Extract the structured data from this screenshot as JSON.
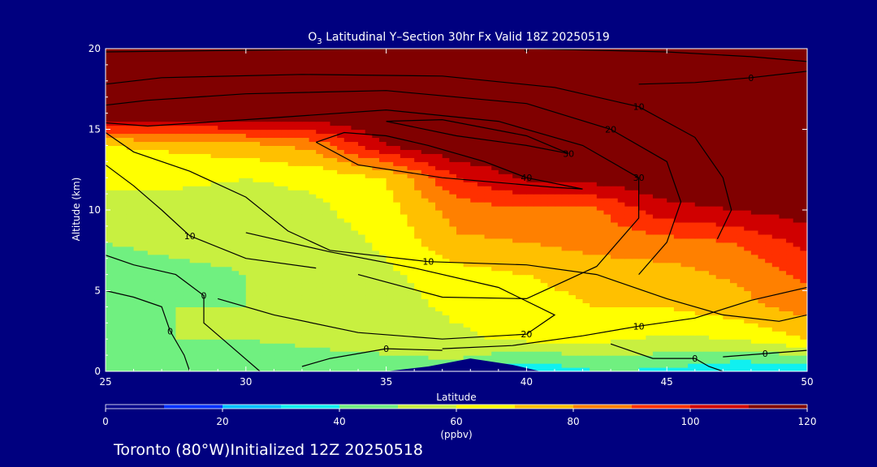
{
  "chart_data": {
    "type": "heatmap",
    "title_parts": {
      "species": "O",
      "subscript": "3",
      "rest": " Latitudinal Y–Section 30hr  Fx Valid 18Z 20250519"
    },
    "xlabel": "Latitude",
    "ylabel": "Altitude (km)",
    "xlim": [
      25,
      50
    ],
    "ylim": [
      0,
      20
    ],
    "x_ticks": [
      25,
      30,
      35,
      40,
      45,
      50
    ],
    "y_ticks": [
      0,
      5,
      10,
      15,
      20
    ],
    "x_tick_labels": [
      "25",
      "30",
      "35",
      "40",
      "45",
      "50"
    ],
    "y_tick_labels": [
      "0",
      "5",
      "10",
      "15",
      "20"
    ],
    "colorbar": {
      "range": [
        0,
        120
      ],
      "ticks": [
        0,
        20,
        40,
        60,
        80,
        100,
        120
      ],
      "tick_labels": [
        "0",
        "20",
        "40",
        "60",
        "80",
        "100",
        "120"
      ],
      "units": "(ppbv)",
      "colors": [
        "#00008b",
        "#0030ff",
        "#00c0ff",
        "#10f0f0",
        "#70f080",
        "#c8f040",
        "#ffff00",
        "#ffc000",
        "#ff8000",
        "#ff3000",
        "#d00000",
        "#800000"
      ]
    },
    "ozone_field": {
      "lat": [
        25,
        27.5,
        30,
        32.5,
        35,
        37.5,
        40,
        42.5,
        45,
        47.5,
        50
      ],
      "alt": [
        0,
        2,
        4,
        6,
        8,
        10,
        12,
        14,
        16,
        18,
        20
      ],
      "values_ppbv": [
        [
          40,
          42,
          44,
          44,
          44,
          45,
          30,
          40,
          38,
          30,
          30
        ],
        [
          50,
          50,
          50,
          52,
          55,
          58,
          62,
          62,
          58,
          60,
          70
        ],
        [
          48,
          50,
          50,
          52,
          56,
          62,
          66,
          70,
          70,
          76,
          84
        ],
        [
          46,
          48,
          50,
          52,
          58,
          66,
          70,
          74,
          76,
          82,
          92
        ],
        [
          50,
          52,
          52,
          54,
          62,
          78,
          80,
          84,
          86,
          90,
          104
        ],
        [
          56,
          56,
          56,
          58,
          66,
          84,
          88,
          88,
          106,
          110,
          115
        ],
        [
          62,
          62,
          60,
          62,
          70,
          100,
          112,
          115,
          120,
          120,
          120
        ],
        [
          70,
          72,
          76,
          84,
          110,
          120,
          120,
          120,
          120,
          120,
          120
        ],
        [
          120,
          120,
          120,
          120,
          120,
          120,
          120,
          120,
          120,
          120,
          120
        ],
        [
          120,
          120,
          120,
          120,
          120,
          120,
          120,
          120,
          120,
          120,
          120
        ],
        [
          120,
          120,
          120,
          120,
          120,
          120,
          120,
          120,
          120,
          120,
          120
        ]
      ]
    },
    "terrain": {
      "lat": [
        35,
        36.5,
        38,
        39.5,
        40.5
      ],
      "alt_km": [
        0,
        0.3,
        0.8,
        0.4,
        0
      ]
    },
    "contours": [
      {
        "label": "0",
        "points": [
          [
            25,
            19.8
          ],
          [
            30,
            19.9
          ],
          [
            35,
            20
          ],
          [
            40,
            20
          ],
          [
            45,
            19.8
          ],
          [
            48,
            19.5
          ],
          [
            50,
            19.2
          ]
        ]
      },
      {
        "label": "0",
        "points": [
          [
            44,
            17.8
          ],
          [
            46,
            17.9
          ],
          [
            48,
            18.2
          ],
          [
            50,
            18.6
          ]
        ]
      },
      {
        "label": "10",
        "points": [
          [
            25,
            17.8
          ],
          [
            27,
            18.2
          ],
          [
            32,
            18.4
          ],
          [
            37,
            18.3
          ],
          [
            41,
            17.6
          ],
          [
            44,
            16.4
          ],
          [
            46,
            14.5
          ],
          [
            47,
            12
          ],
          [
            47.3,
            10
          ],
          [
            46.8,
            8.2
          ]
        ]
      },
      {
        "label": "20",
        "points": [
          [
            25,
            16.5
          ],
          [
            26.5,
            16.8
          ],
          [
            30,
            17.2
          ],
          [
            35,
            17.4
          ],
          [
            40,
            16.6
          ],
          [
            43,
            15
          ],
          [
            45,
            13
          ],
          [
            45.5,
            10.5
          ],
          [
            45,
            8
          ],
          [
            44,
            6
          ]
        ]
      },
      {
        "label": "30",
        "points": [
          [
            25,
            15.4
          ],
          [
            26.5,
            15.2
          ],
          [
            30,
            15.6
          ],
          [
            35,
            16.2
          ],
          [
            39,
            15.5
          ],
          [
            42,
            14
          ],
          [
            44,
            12
          ],
          [
            44,
            9.5
          ],
          [
            42.5,
            6.5
          ],
          [
            40,
            4.5
          ],
          [
            37,
            4.6
          ],
          [
            34,
            6
          ]
        ]
      },
      {
        "label": "40",
        "points": [
          [
            32.5,
            14.2
          ],
          [
            33.5,
            14.8
          ],
          [
            35,
            14.6
          ],
          [
            36.5,
            14
          ],
          [
            38.5,
            13
          ],
          [
            40,
            12
          ],
          [
            42,
            11.3
          ],
          [
            41,
            11.4
          ],
          [
            37,
            12
          ],
          [
            34,
            12.8
          ],
          [
            32.5,
            14.2
          ]
        ]
      },
      {
        "label": "30",
        "points": [
          [
            35,
            15.5
          ],
          [
            37.5,
            14.6
          ],
          [
            40,
            14
          ],
          [
            41.5,
            13.5
          ],
          [
            40,
            14.6
          ],
          [
            37,
            15.6
          ],
          [
            35,
            15.5
          ]
        ]
      },
      {
        "label": "10",
        "points": [
          [
            25,
            14.8
          ],
          [
            26,
            13.6
          ],
          [
            28,
            12.4
          ],
          [
            30,
            10.8
          ],
          [
            31.5,
            8.7
          ],
          [
            33,
            7.5
          ],
          [
            36.5,
            6.8
          ],
          [
            40,
            6.6
          ],
          [
            42.5,
            6
          ],
          [
            45,
            4.5
          ],
          [
            47,
            3.5
          ],
          [
            49,
            3.1
          ],
          [
            50,
            3.5
          ]
        ]
      },
      {
        "label": "10",
        "points": [
          [
            25,
            12.8
          ],
          [
            26,
            11.5
          ],
          [
            27,
            10
          ],
          [
            28,
            8.4
          ],
          [
            30,
            7
          ],
          [
            32.5,
            6.4
          ]
        ]
      },
      {
        "label": "20",
        "points": [
          [
            30,
            8.6
          ],
          [
            33,
            7.4
          ],
          [
            36,
            6.4
          ],
          [
            39,
            5.2
          ],
          [
            41,
            3.5
          ],
          [
            40,
            2.3
          ],
          [
            37,
            2
          ],
          [
            34,
            2.4
          ],
          [
            31,
            3.5
          ],
          [
            29,
            4.5
          ]
        ]
      },
      {
        "label": "0",
        "points": [
          [
            25,
            7.2
          ],
          [
            26,
            6.6
          ],
          [
            27.5,
            6.0
          ],
          [
            28.5,
            4.7
          ],
          [
            28.5,
            3
          ],
          [
            29.5,
            1.5
          ],
          [
            30.5,
            0
          ]
        ]
      },
      {
        "label": "0",
        "points": [
          [
            25,
            5
          ],
          [
            26,
            4.6
          ],
          [
            27,
            4
          ],
          [
            27.3,
            2.5
          ],
          [
            27.8,
            1
          ],
          [
            28,
            0
          ]
        ]
      },
      {
        "label": "10",
        "points": [
          [
            37,
            1.4
          ],
          [
            39.5,
            1.6
          ],
          [
            42,
            2.2
          ],
          [
            44,
            2.8
          ],
          [
            46,
            3.3
          ],
          [
            48,
            4.4
          ],
          [
            50,
            5.2
          ]
        ]
      },
      {
        "label": "0",
        "points": [
          [
            32,
            0.3
          ],
          [
            33,
            0.8
          ],
          [
            35,
            1.4
          ],
          [
            37,
            1.3
          ]
        ]
      },
      {
        "label": "0",
        "points": [
          [
            43,
            1.7
          ],
          [
            44.5,
            0.8
          ],
          [
            46,
            0.8
          ],
          [
            46.5,
            0.3
          ],
          [
            47,
            0
          ]
        ]
      },
      {
        "label": "0",
        "points": [
          [
            47,
            0.9
          ],
          [
            48.5,
            1.1
          ],
          [
            50,
            1.3
          ]
        ]
      }
    ]
  },
  "footer": {
    "location_text": "Toronto (80°W)Initialized 12Z 20250518"
  },
  "colors": {
    "background": "#00007f",
    "text": "#ffffff",
    "contour": "#000000",
    "terrain": "#00007f"
  }
}
